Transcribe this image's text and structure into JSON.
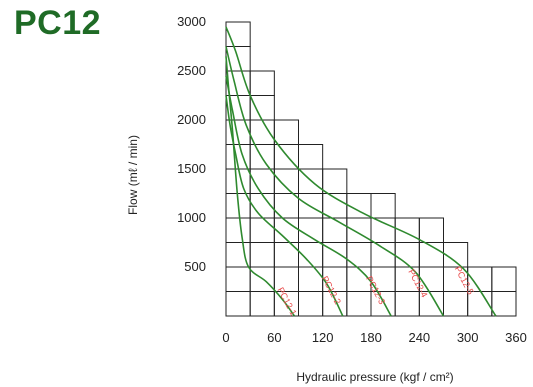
{
  "title": "PC12",
  "chart_data": {
    "type": "line",
    "title": "PC12",
    "xlabel": "Hydraulic  pressure  (kgf / cm²)",
    "ylabel": "Flow    (mℓ / min)",
    "xlim": [
      0,
      360
    ],
    "ylim": [
      0,
      3000
    ],
    "x_ticks": [
      "0",
      "60",
      "120",
      "180",
      "240",
      "300",
      "360"
    ],
    "y_ticks": [
      "500",
      "1000",
      "1500",
      "2000",
      "2500",
      "3000"
    ],
    "grid_steps": {
      "x": 30,
      "y": 250
    },
    "grid_envelope": [
      {
        "x_max": 30,
        "y_max": 3000
      },
      {
        "x_max": 60,
        "y_max": 2500
      },
      {
        "x_max": 90,
        "y_max": 2000
      },
      {
        "x_max": 120,
        "y_max": 1750
      },
      {
        "x_max": 150,
        "y_max": 1500
      },
      {
        "x_max": 180,
        "y_max": 1250
      },
      {
        "x_max": 210,
        "y_max": 1250
      },
      {
        "x_max": 240,
        "y_max": 1000
      },
      {
        "x_max": 270,
        "y_max": 1000
      },
      {
        "x_max": 300,
        "y_max": 750
      },
      {
        "x_max": 330,
        "y_max": 500
      },
      {
        "x_max": 360,
        "y_max": 500
      }
    ],
    "curve_color": "#2f8a2f",
    "label_color": "#e84b4b",
    "series": [
      {
        "label": "PC12-1",
        "points": [
          [
            0,
            2650
          ],
          [
            3,
            2350
          ],
          [
            8,
            1900
          ],
          [
            14,
            1250
          ],
          [
            20,
            800
          ],
          [
            28,
            500
          ],
          [
            50,
            350
          ],
          [
            70,
            170
          ],
          [
            85,
            0
          ]
        ]
      },
      {
        "label": "PC12-2",
        "points": [
          [
            0,
            2250
          ],
          [
            5,
            1950
          ],
          [
            12,
            1650
          ],
          [
            22,
            1300
          ],
          [
            40,
            1050
          ],
          [
            70,
            820
          ],
          [
            100,
            580
          ],
          [
            125,
            330
          ],
          [
            145,
            0
          ]
        ]
      },
      {
        "label": "PC12-3",
        "points": [
          [
            0,
            2450
          ],
          [
            8,
            2100
          ],
          [
            20,
            1650
          ],
          [
            40,
            1300
          ],
          [
            70,
            1000
          ],
          [
            110,
            780
          ],
          [
            150,
            580
          ],
          [
            180,
            350
          ],
          [
            205,
            0
          ]
        ]
      },
      {
        "label": "PC12-4",
        "points": [
          [
            0,
            2750
          ],
          [
            10,
            2400
          ],
          [
            25,
            1950
          ],
          [
            50,
            1550
          ],
          [
            90,
            1200
          ],
          [
            140,
            960
          ],
          [
            190,
            720
          ],
          [
            235,
            450
          ],
          [
            270,
            0
          ]
        ]
      },
      {
        "label": "PC12-5",
        "points": [
          [
            0,
            2950
          ],
          [
            12,
            2700
          ],
          [
            30,
            2250
          ],
          [
            60,
            1800
          ],
          [
            110,
            1350
          ],
          [
            170,
            1050
          ],
          [
            240,
            780
          ],
          [
            295,
            480
          ],
          [
            335,
            0
          ]
        ]
      }
    ]
  }
}
